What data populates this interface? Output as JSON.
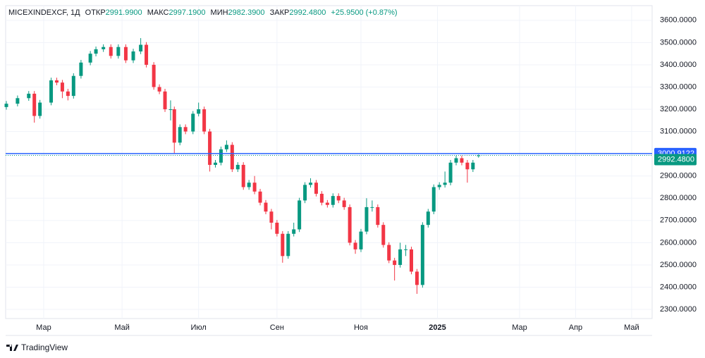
{
  "chart_data": {
    "type": "candlestick",
    "header": {
      "symbol": "MICEXINDEXCF, 1Д",
      "open_label": "ОТКР",
      "open": "2991.9900",
      "high_label": "МАКС",
      "high": "2997.1900",
      "low_label": "МИН",
      "low": "2982.3900",
      "close_label": "ЗАКР",
      "close": "2992.4800",
      "change": "+25.9500 (+0.87%)"
    },
    "up_color": "#089981",
    "down_color": "#f23645",
    "grid": true,
    "x": [
      0,
      6,
      12,
      15,
      18,
      24,
      27,
      30,
      33,
      36,
      40,
      45,
      48,
      52,
      56,
      60,
      64,
      68,
      72,
      75,
      79,
      82,
      85,
      88,
      90,
      93,
      96,
      100,
      103,
      106,
      109,
      112,
      115,
      118,
      121,
      124,
      127,
      130,
      133,
      136,
      139,
      142,
      145,
      148,
      151,
      154,
      157,
      160,
      163,
      166,
      169,
      172,
      175,
      178,
      181,
      184,
      187,
      190,
      193,
      196,
      199,
      202,
      205,
      208,
      211,
      214,
      217,
      220,
      223,
      226,
      229,
      232,
      235,
      238,
      241,
      244,
      247,
      250,
      253
    ],
    "open": [
      3210,
      3225,
      3250,
      3270,
      3170,
      3230,
      3330,
      3320,
      3280,
      3260,
      3350,
      3410,
      3450,
      3470,
      3480,
      3440,
      3480,
      3420,
      3460,
      3490,
      3400,
      3300,
      3280,
      3200,
      3200,
      3050,
      3120,
      3100,
      3180,
      3200,
      3100,
      2950,
      2960,
      3020,
      3040,
      2930,
      2950,
      2850,
      2870,
      2830,
      2780,
      2740,
      2690,
      2640,
      2540,
      2640,
      2660,
      2790,
      2860,
      2870,
      2820,
      2780,
      2770,
      2810,
      2790,
      2760,
      2600,
      2570,
      2650,
      2760,
      2760,
      2680,
      2590,
      2520,
      2500,
      2570,
      2570,
      2470,
      2410,
      2680,
      2740,
      2850,
      2860,
      2870,
      2960,
      2980,
      2960,
      2930,
      2991.99
    ],
    "high": [
      3237,
      3262,
      3282,
      3282,
      3242,
      3342,
      3342,
      3332,
      3292,
      3362,
      3422,
      3462,
      3482,
      3492,
      3492,
      3492,
      3492,
      3472,
      3520,
      3502,
      3412,
      3312,
      3292,
      3240,
      3212,
      3132,
      3132,
      3192,
      3230,
      3212,
      3112,
      2972,
      3032,
      3060,
      3052,
      2962,
      2962,
      2882,
      2900,
      2842,
      2792,
      2752,
      2702,
      2652,
      2652,
      2690,
      2802,
      2872,
      2890,
      2882,
      2832,
      2792,
      2822,
      2822,
      2802,
      2772,
      2612,
      2662,
      2800,
      2790,
      2772,
      2692,
      2602,
      2532,
      2600,
      2590,
      2582,
      2482,
      2692,
      2752,
      2862,
      2872,
      2920,
      2972,
      2992,
      2992,
      2972,
      2972,
      2997.19
    ],
    "low": [
      3198,
      3213,
      3238,
      3140,
      3158,
      3218,
      3308,
      3250,
      3240,
      3248,
      3338,
      3398,
      3438,
      3458,
      3428,
      3428,
      3408,
      3408,
      3448,
      3388,
      3288,
      3268,
      3188,
      3150,
      3000,
      3038,
      3088,
      3088,
      3168,
      3088,
      2920,
      2938,
      2948,
      3008,
      2918,
      2918,
      2838,
      2838,
      2818,
      2768,
      2728,
      2660,
      2628,
      2510,
      2528,
      2628,
      2648,
      2778,
      2848,
      2808,
      2768,
      2758,
      2758,
      2778,
      2748,
      2588,
      2550,
      2558,
      2638,
      2740,
      2668,
      2578,
      2508,
      2430,
      2488,
      2540,
      2458,
      2370,
      2398,
      2668,
      2728,
      2838,
      2848,
      2858,
      2948,
      2948,
      2870,
      2918,
      2982.39
    ],
    "close": [
      3225,
      3250,
      3270,
      3170,
      3230,
      3330,
      3320,
      3280,
      3260,
      3350,
      3410,
      3450,
      3470,
      3480,
      3440,
      3480,
      3420,
      3460,
      3490,
      3400,
      3300,
      3280,
      3200,
      3200,
      3050,
      3120,
      3100,
      3180,
      3200,
      3100,
      2950,
      2960,
      3020,
      3040,
      2930,
      2950,
      2850,
      2870,
      2830,
      2780,
      2740,
      2690,
      2640,
      2540,
      2640,
      2660,
      2790,
      2860,
      2870,
      2820,
      2780,
      2770,
      2810,
      2790,
      2760,
      2600,
      2570,
      2650,
      2760,
      2760,
      2680,
      2590,
      2520,
      2500,
      2570,
      2570,
      2470,
      2410,
      2680,
      2740,
      2850,
      2860,
      2870,
      2960,
      2980,
      2960,
      2930,
      2960,
      2992.48
    ],
    "xlim": [
      0,
      346
    ],
    "xticks": [
      {
        "value": 20,
        "label": "Мар"
      },
      {
        "value": 62,
        "label": "Май"
      },
      {
        "value": 103,
        "label": "Июл"
      },
      {
        "value": 145,
        "label": "Сен"
      },
      {
        "value": 190,
        "label": "Ноя"
      },
      {
        "value": 231,
        "label": "2025"
      },
      {
        "value": 275,
        "label": "Мар"
      },
      {
        "value": 305,
        "label": "Апр"
      },
      {
        "value": 335,
        "label": "Май"
      }
    ],
    "ylim": [
      2259,
      3666
    ],
    "yticks": [
      {
        "value": 2300,
        "label": "2300.0000"
      },
      {
        "value": 2400,
        "label": "2400.0000"
      },
      {
        "value": 2500,
        "label": "2500.0000"
      },
      {
        "value": 2600,
        "label": "2600.0000"
      },
      {
        "value": 2700,
        "label": "2700.0000"
      },
      {
        "value": 2800,
        "label": "2800.0000"
      },
      {
        "value": 2900,
        "label": "2900.0000"
      },
      {
        "value": 3000,
        "label": "3000.0000"
      },
      {
        "value": 3100,
        "label": "3100.0000"
      },
      {
        "value": 3200,
        "label": "3200.0000"
      },
      {
        "value": 3300,
        "label": "3300.0000"
      },
      {
        "value": 3400,
        "label": "3400.0000"
      },
      {
        "value": 3500,
        "label": "3500.0000"
      },
      {
        "value": 3600,
        "label": "3600.0000"
      }
    ],
    "horizontal_line": {
      "value": 3000.9122,
      "color": "#2962ff"
    },
    "last_price": {
      "value": 2992.48,
      "label": "2992.4800",
      "color": "#089981"
    },
    "branding": "TradingView"
  }
}
